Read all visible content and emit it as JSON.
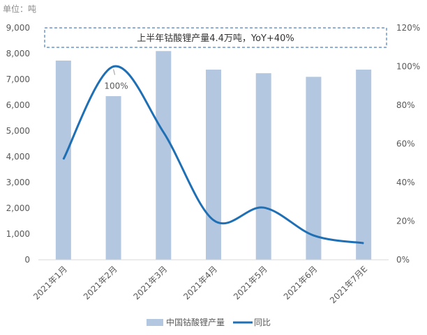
{
  "chart_data": {
    "type": "bar+line",
    "unit_label": "单位：吨",
    "annotation": "上半年钴酸锂产量4.4万吨，YoY+40%",
    "point_label": "100%",
    "categories": [
      "2021年1月",
      "2021年2月",
      "2021年3月",
      "2021年4月",
      "2021年5月",
      "2021年6月",
      "2021年7月E"
    ],
    "series": [
      {
        "name": "中国钴酸锂产量",
        "type": "bar",
        "axis": "left",
        "color": "#b4c7e0",
        "values": [
          7730,
          6350,
          8100,
          7380,
          7240,
          7100,
          7380
        ]
      },
      {
        "name": "同比",
        "type": "line",
        "axis": "right",
        "color": "#1f6fb4",
        "values": [
          52,
          100,
          66,
          20.5,
          27,
          12.6,
          8.6
        ]
      }
    ],
    "y_left": {
      "min": 0,
      "max": 9000,
      "ticks": [
        "0",
        "1,000",
        "2,000",
        "3,000",
        "4,000",
        "5,000",
        "6,000",
        "7,000",
        "8,000",
        "9,000"
      ]
    },
    "y_right": {
      "min": 0,
      "max": 120,
      "ticks": [
        "0%",
        "20%",
        "40%",
        "60%",
        "80%",
        "100%",
        "120%"
      ]
    },
    "legend_position": "bottom",
    "grid": false
  }
}
